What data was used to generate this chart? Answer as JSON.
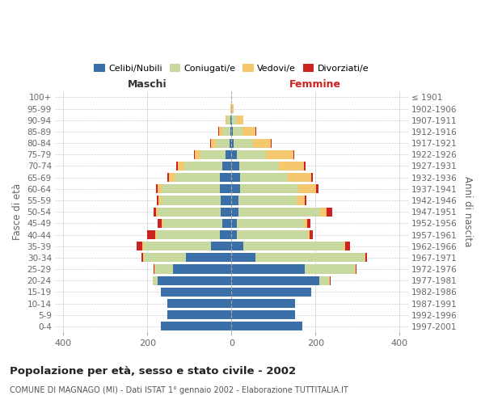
{
  "age_groups": [
    "0-4",
    "5-9",
    "10-14",
    "15-19",
    "20-24",
    "25-29",
    "30-34",
    "35-39",
    "40-44",
    "45-49",
    "50-54",
    "55-59",
    "60-64",
    "65-69",
    "70-74",
    "75-79",
    "80-84",
    "85-89",
    "90-94",
    "95-99",
    "100+"
  ],
  "birth_years": [
    "1997-2001",
    "1992-1996",
    "1987-1991",
    "1982-1986",
    "1977-1981",
    "1972-1976",
    "1967-1971",
    "1962-1966",
    "1957-1961",
    "1952-1956",
    "1947-1951",
    "1942-1946",
    "1937-1941",
    "1932-1936",
    "1927-1931",
    "1922-1926",
    "1917-1921",
    "1912-1916",
    "1907-1911",
    "1902-1906",
    "≤ 1901"
  ],
  "m_celibe": [
    168,
    152,
    152,
    168,
    175,
    140,
    108,
    48,
    28,
    22,
    25,
    25,
    28,
    28,
    22,
    15,
    4,
    3,
    2,
    0,
    0
  ],
  "m_coniugato": [
    0,
    0,
    0,
    0,
    12,
    42,
    100,
    160,
    150,
    140,
    150,
    142,
    138,
    108,
    90,
    58,
    33,
    18,
    8,
    1,
    0
  ],
  "m_vedovo": [
    0,
    0,
    0,
    0,
    0,
    2,
    2,
    4,
    4,
    4,
    4,
    7,
    10,
    13,
    16,
    15,
    12,
    8,
    4,
    1,
    0
  ],
  "m_divorziato": [
    0,
    0,
    0,
    0,
    0,
    2,
    4,
    14,
    18,
    9,
    7,
    4,
    4,
    4,
    3,
    2,
    2,
    2,
    0,
    0,
    0
  ],
  "f_nubile": [
    168,
    152,
    152,
    190,
    210,
    175,
    58,
    28,
    12,
    12,
    16,
    16,
    20,
    20,
    18,
    12,
    6,
    4,
    2,
    0,
    0
  ],
  "f_coniugata": [
    0,
    0,
    0,
    0,
    22,
    118,
    258,
    238,
    170,
    160,
    195,
    140,
    140,
    115,
    95,
    70,
    45,
    22,
    10,
    2,
    0
  ],
  "f_vedova": [
    0,
    0,
    0,
    0,
    2,
    2,
    2,
    4,
    4,
    8,
    16,
    18,
    42,
    55,
    60,
    65,
    42,
    32,
    16,
    4,
    0
  ],
  "f_divorziata": [
    0,
    0,
    0,
    0,
    2,
    2,
    4,
    13,
    7,
    7,
    13,
    4,
    6,
    4,
    4,
    2,
    2,
    2,
    0,
    0,
    0
  ],
  "color_celibe": "#3a6fa8",
  "color_coniugato": "#c8d9a0",
  "color_vedovo": "#f5c76e",
  "color_divorziato": "#cc2222",
  "legend_labels": [
    "Celibi/Nubili",
    "Coniugati/e",
    "Vedovi/e",
    "Divorziati/e"
  ],
  "label_maschi": "Maschi",
  "label_femmine": "Femmine",
  "ylabel_left": "Fasce di età",
  "ylabel_right": "Anni di nascita",
  "title": "Popolazione per età, sesso e stato civile - 2002",
  "subtitle": "COMUNE DI MAGNAGO (MI) - Dati ISTAT 1° gennaio 2002 - Elaborazione TUTTITALIA.IT",
  "xlim": 420,
  "bg_color": "#ffffff",
  "grid_color": "#cccccc"
}
